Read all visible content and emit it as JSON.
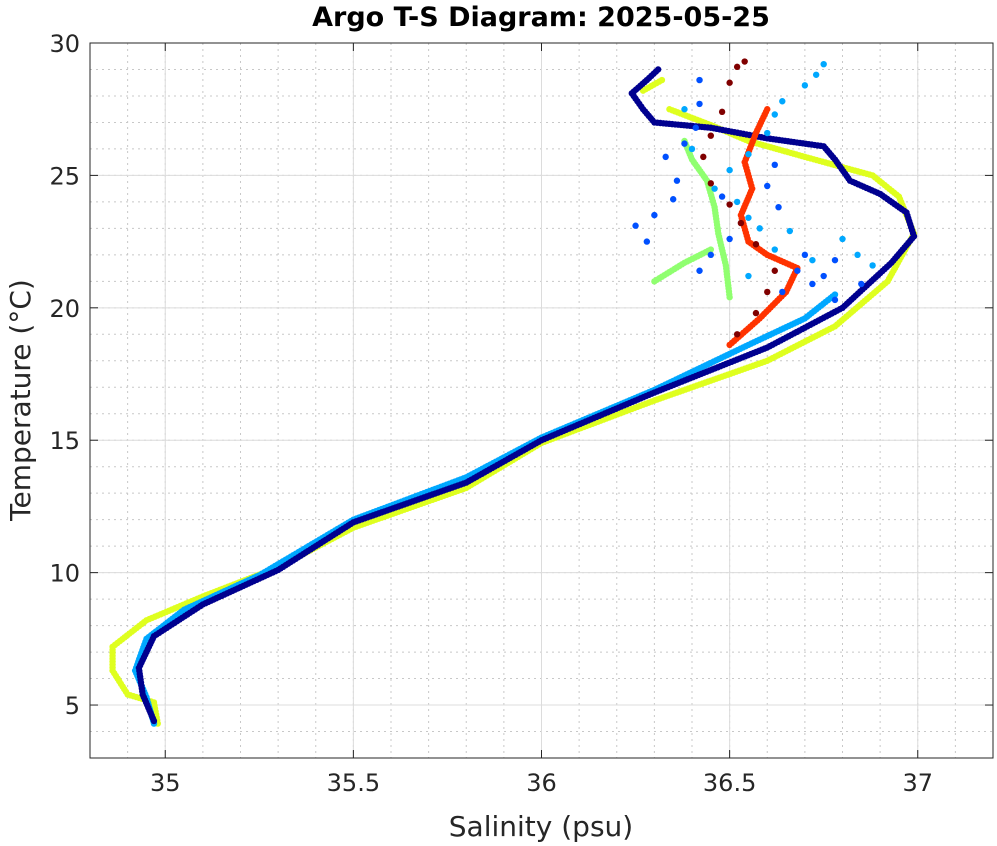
{
  "chart_data": {
    "type": "scatter",
    "title": "Argo T-S Diagram: 2025-05-25",
    "xlabel": "Salinity (psu)",
    "ylabel": "Temperature (°C)",
    "xlim": [
      34.8,
      37.2
    ],
    "ylim": [
      3,
      30
    ],
    "xticks": [
      35,
      35.5,
      36,
      36.5,
      37
    ],
    "xtick_labels": [
      "35",
      "35.5",
      "36",
      "36.5",
      "37"
    ],
    "yticks": [
      5,
      10,
      15,
      20,
      25,
      30
    ],
    "ytick_labels": [
      "5",
      "10",
      "15",
      "20",
      "25",
      "30"
    ],
    "grid": "major and minor",
    "series": [
      {
        "name": "profile-yellow",
        "color": "#dfff1f",
        "mode": "line",
        "points": [
          [
            34.98,
            4.3
          ],
          [
            34.97,
            5.1
          ],
          [
            34.9,
            5.4
          ],
          [
            34.86,
            6.3
          ],
          [
            34.86,
            7.2
          ],
          [
            34.95,
            8.2
          ],
          [
            35.1,
            9.1
          ],
          [
            35.3,
            10.2
          ],
          [
            35.5,
            11.7
          ],
          [
            35.8,
            13.2
          ],
          [
            36.0,
            14.9
          ],
          [
            36.3,
            16.5
          ],
          [
            36.6,
            18.0
          ],
          [
            36.78,
            19.3
          ],
          [
            36.92,
            21.0
          ],
          [
            36.99,
            22.8
          ],
          [
            36.95,
            24.2
          ],
          [
            36.88,
            25.0
          ],
          [
            36.7,
            25.7
          ],
          [
            36.55,
            26.3
          ],
          [
            36.45,
            26.9
          ],
          [
            36.34,
            27.5
          ]
        ]
      },
      {
        "name": "profile-yellow-top",
        "color": "#dfff1f",
        "mode": "line",
        "points": [
          [
            36.27,
            28.2
          ],
          [
            36.32,
            28.6
          ]
        ]
      },
      {
        "name": "profile-lightblue",
        "color": "#00a8ff",
        "mode": "line",
        "points": [
          [
            34.97,
            4.3
          ],
          [
            34.95,
            5.3
          ],
          [
            34.92,
            6.3
          ],
          [
            34.95,
            7.5
          ],
          [
            35.05,
            8.6
          ],
          [
            35.25,
            9.9
          ],
          [
            35.5,
            12.0
          ],
          [
            35.8,
            13.6
          ],
          [
            36.0,
            15.1
          ],
          [
            36.3,
            16.9
          ],
          [
            36.55,
            18.6
          ],
          [
            36.7,
            19.6
          ],
          [
            36.78,
            20.5
          ]
        ]
      },
      {
        "name": "profile-navy",
        "color": "#00008f",
        "mode": "line",
        "points": [
          [
            34.97,
            4.4
          ],
          [
            34.94,
            5.4
          ],
          [
            34.93,
            6.4
          ],
          [
            34.97,
            7.6
          ],
          [
            35.1,
            8.8
          ],
          [
            35.3,
            10.1
          ],
          [
            35.5,
            11.9
          ],
          [
            35.8,
            13.4
          ],
          [
            36.0,
            15.0
          ],
          [
            36.3,
            16.8
          ],
          [
            36.6,
            18.5
          ],
          [
            36.8,
            20.0
          ],
          [
            36.93,
            21.7
          ],
          [
            36.99,
            22.7
          ],
          [
            36.97,
            23.6
          ],
          [
            36.9,
            24.3
          ],
          [
            36.82,
            24.8
          ],
          [
            36.78,
            25.6
          ],
          [
            36.75,
            26.1
          ],
          [
            36.6,
            26.4
          ],
          [
            36.45,
            26.8
          ],
          [
            36.3,
            27.0
          ],
          [
            36.27,
            27.5
          ],
          [
            36.24,
            28.1
          ],
          [
            36.28,
            28.6
          ],
          [
            36.31,
            29.0
          ]
        ]
      },
      {
        "name": "profile-orange",
        "color": "#ff3300",
        "mode": "line",
        "points": [
          [
            36.5,
            18.6
          ],
          [
            36.58,
            19.6
          ],
          [
            36.65,
            20.6
          ],
          [
            36.68,
            21.5
          ],
          [
            36.6,
            22.0
          ],
          [
            36.55,
            22.5
          ],
          [
            36.53,
            23.5
          ],
          [
            36.56,
            24.5
          ],
          [
            36.54,
            25.5
          ],
          [
            36.57,
            26.6
          ],
          [
            36.6,
            27.5
          ]
        ]
      },
      {
        "name": "profile-lightgreen",
        "color": "#90ff70",
        "mode": "line",
        "points": [
          [
            36.5,
            20.4
          ],
          [
            36.49,
            21.6
          ],
          [
            36.47,
            22.8
          ],
          [
            36.46,
            23.8
          ],
          [
            36.44,
            24.8
          ],
          [
            36.4,
            25.6
          ],
          [
            36.38,
            26.3
          ]
        ]
      },
      {
        "name": "profile-lightgreen-branch",
        "color": "#90ff70",
        "mode": "line",
        "points": [
          [
            36.3,
            21.0
          ],
          [
            36.38,
            21.7
          ],
          [
            36.45,
            22.2
          ]
        ]
      },
      {
        "name": "scatter-darkred",
        "color": "#800000",
        "mode": "points",
        "points": [
          [
            36.54,
            29.3
          ],
          [
            36.52,
            29.1
          ],
          [
            36.5,
            28.5
          ],
          [
            36.48,
            27.4
          ],
          [
            36.45,
            26.5
          ],
          [
            36.43,
            25.7
          ],
          [
            36.45,
            24.7
          ],
          [
            36.5,
            23.9
          ],
          [
            36.53,
            23.2
          ],
          [
            36.57,
            22.4
          ],
          [
            36.62,
            21.4
          ],
          [
            36.6,
            20.6
          ],
          [
            36.57,
            19.8
          ],
          [
            36.52,
            19.0
          ]
        ]
      },
      {
        "name": "scatter-blue",
        "color": "#0050ff",
        "mode": "points",
        "points": [
          [
            36.42,
            28.6
          ],
          [
            36.42,
            27.7
          ],
          [
            36.41,
            26.8
          ],
          [
            36.38,
            26.2
          ],
          [
            36.33,
            25.7
          ],
          [
            36.36,
            24.8
          ],
          [
            36.35,
            24.1
          ],
          [
            36.3,
            23.5
          ],
          [
            36.25,
            23.1
          ],
          [
            36.28,
            22.5
          ],
          [
            36.48,
            24.2
          ],
          [
            36.62,
            25.4
          ],
          [
            36.6,
            24.6
          ],
          [
            36.63,
            23.8
          ],
          [
            36.7,
            22.0
          ],
          [
            36.75,
            21.2
          ],
          [
            36.68,
            21.4
          ],
          [
            36.5,
            22.6
          ],
          [
            36.45,
            22.0
          ],
          [
            36.42,
            21.4
          ],
          [
            36.64,
            20.6
          ],
          [
            36.72,
            20.9
          ],
          [
            36.78,
            21.8
          ],
          [
            36.85,
            20.9
          ],
          [
            36.78,
            20.3
          ]
        ]
      },
      {
        "name": "scatter-skyblue",
        "color": "#00a8ff",
        "mode": "points",
        "points": [
          [
            36.75,
            29.2
          ],
          [
            36.73,
            28.8
          ],
          [
            36.7,
            28.4
          ],
          [
            36.64,
            27.8
          ],
          [
            36.62,
            27.3
          ],
          [
            36.6,
            26.6
          ],
          [
            36.55,
            25.8
          ],
          [
            36.5,
            25.2
          ],
          [
            36.46,
            24.5
          ],
          [
            36.38,
            27.5
          ],
          [
            36.4,
            26.0
          ],
          [
            36.52,
            24.0
          ],
          [
            36.55,
            23.4
          ],
          [
            36.58,
            23.0
          ],
          [
            36.62,
            22.2
          ],
          [
            36.8,
            22.6
          ],
          [
            36.84,
            22.0
          ],
          [
            36.88,
            21.6
          ],
          [
            36.66,
            22.9
          ],
          [
            36.72,
            21.8
          ],
          [
            36.55,
            21.2
          ]
        ]
      }
    ]
  }
}
